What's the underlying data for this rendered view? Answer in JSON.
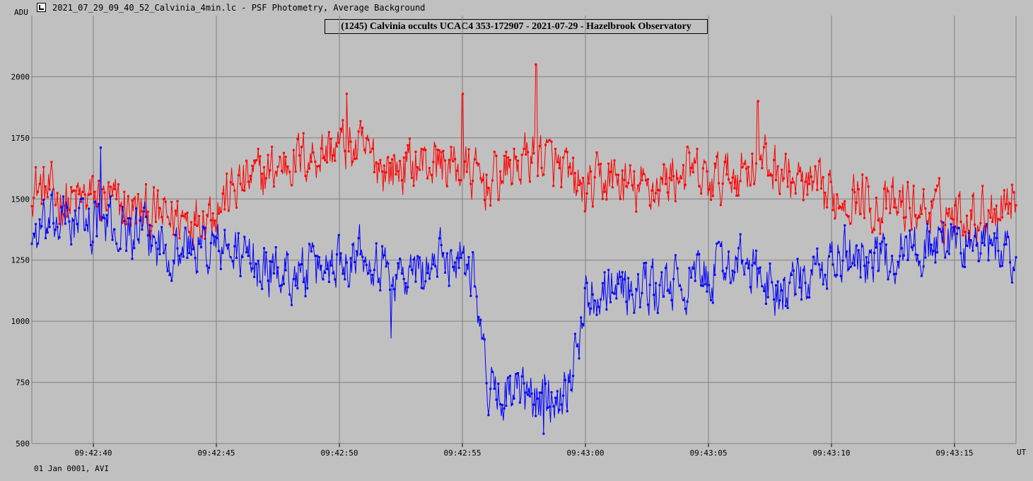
{
  "window": {
    "title": "2021_07_29_09_40_52_Calvinia_4min.lc - PSF Photometry, Average Background",
    "icon": "lightcurve-app-icon"
  },
  "footer_text": "01 Jan 0001, AVI",
  "chart_data": {
    "type": "line",
    "title": "(1245) Calvinia occults UCAC4 353-172907 - 2021-07-29 - Hazelbrook Observatory",
    "ylabel": "ADU",
    "xlabel": "UT",
    "ylim": [
      500,
      2250
    ],
    "xlim": [
      "09:42:37.5",
      "09:43:17.5"
    ],
    "grid": true,
    "yticks": [
      "500",
      "750",
      "1000",
      "1250",
      "1500",
      "1750",
      "2000"
    ],
    "xticks": [
      "09:42:40",
      "09:42:45",
      "09:42:50",
      "09:42:55",
      "09:43:00",
      "09:43:05",
      "09:43:10",
      "09:43:15"
    ],
    "sample_interval_s": 0.04,
    "series": [
      {
        "color": "#ff0000",
        "x_start": "09:42:37.5",
        "envelope": [
          [
            "09:42:37.5",
            1560
          ],
          [
            "09:42:39",
            1480
          ],
          [
            "09:42:40",
            1510
          ],
          [
            "09:42:41",
            1470
          ],
          [
            "09:42:42",
            1440
          ],
          [
            "09:42:43",
            1420
          ],
          [
            "09:42:44",
            1430
          ],
          [
            "09:42:45",
            1470
          ],
          [
            "09:42:46",
            1560
          ],
          [
            "09:42:47",
            1600
          ],
          [
            "09:42:48",
            1660
          ],
          [
            "09:42:49",
            1680
          ],
          [
            "09:42:50",
            1720
          ],
          [
            "09:42:51",
            1690
          ],
          [
            "09:42:52",
            1620
          ],
          [
            "09:42:53",
            1640
          ],
          [
            "09:42:54",
            1650
          ],
          [
            "09:42:55",
            1620
          ],
          [
            "09:42:56",
            1560
          ],
          [
            "09:42:57",
            1620
          ],
          [
            "09:42:58",
            1700
          ],
          [
            "09:42:59",
            1610
          ],
          [
            "09:43:00",
            1520
          ],
          [
            "09:43:01",
            1590
          ],
          [
            "09:43:02",
            1530
          ],
          [
            "09:43:03",
            1560
          ],
          [
            "09:43:04",
            1620
          ],
          [
            "09:43:05",
            1560
          ],
          [
            "09:43:06",
            1600
          ],
          [
            "09:43:07",
            1660
          ],
          [
            "09:43:08",
            1610
          ],
          [
            "09:43:09",
            1540
          ],
          [
            "09:43:10",
            1500
          ],
          [
            "09:43:11",
            1520
          ],
          [
            "09:43:12",
            1460
          ],
          [
            "09:43:13",
            1470
          ],
          [
            "09:43:14",
            1450
          ],
          [
            "09:43:15",
            1440
          ],
          [
            "09:43:16",
            1440
          ],
          [
            "09:43:17.5",
            1520
          ]
        ],
        "noise_amplitude": 110,
        "spikes": [
          [
            "09:42:58",
            2050
          ],
          [
            "09:42:50.3",
            1930
          ],
          [
            "09:42:55",
            1930
          ],
          [
            "09:43:07",
            1900
          ]
        ]
      },
      {
        "color": "#0000ff",
        "x_start": "09:42:37.5",
        "envelope": [
          [
            "09:42:37.5",
            1350
          ],
          [
            "09:42:39",
            1420
          ],
          [
            "09:42:40",
            1400
          ],
          [
            "09:42:41",
            1380
          ],
          [
            "09:42:42",
            1350
          ],
          [
            "09:42:43",
            1300
          ],
          [
            "09:42:44",
            1300
          ],
          [
            "09:42:45",
            1300
          ],
          [
            "09:42:46",
            1270
          ],
          [
            "09:42:47",
            1210
          ],
          [
            "09:42:48",
            1200
          ],
          [
            "09:42:49",
            1200
          ],
          [
            "09:42:50",
            1260
          ],
          [
            "09:42:51",
            1310
          ],
          [
            "09:42:52",
            1200
          ],
          [
            "09:42:53",
            1180
          ],
          [
            "09:42:54",
            1250
          ],
          [
            "09:42:55",
            1280
          ],
          [
            "09:42:55.5",
            1200
          ],
          [
            "09:42:56",
            730
          ],
          [
            "09:42:57",
            700
          ],
          [
            "09:42:58",
            680
          ],
          [
            "09:42:59",
            710
          ],
          [
            "09:42:59.5",
            800
          ],
          [
            "09:43:00",
            1100
          ],
          [
            "09:43:01",
            1170
          ],
          [
            "09:43:02",
            1120
          ],
          [
            "09:43:03",
            1130
          ],
          [
            "09:43:04",
            1150
          ],
          [
            "09:43:05",
            1180
          ],
          [
            "09:43:06",
            1250
          ],
          [
            "09:43:07",
            1180
          ],
          [
            "09:43:08",
            1120
          ],
          [
            "09:43:09",
            1150
          ],
          [
            "09:43:10",
            1240
          ],
          [
            "09:43:11",
            1280
          ],
          [
            "09:43:12",
            1240
          ],
          [
            "09:43:13",
            1300
          ],
          [
            "09:43:14",
            1310
          ],
          [
            "09:43:15",
            1330
          ],
          [
            "09:43:16",
            1300
          ],
          [
            "09:43:17.5",
            1280
          ]
        ],
        "noise_amplitude": 110,
        "spikes": [
          [
            "09:42:40.3",
            1710
          ],
          [
            "09:42:58.3",
            540
          ],
          [
            "09:42:52.1",
            930
          ]
        ]
      }
    ]
  }
}
